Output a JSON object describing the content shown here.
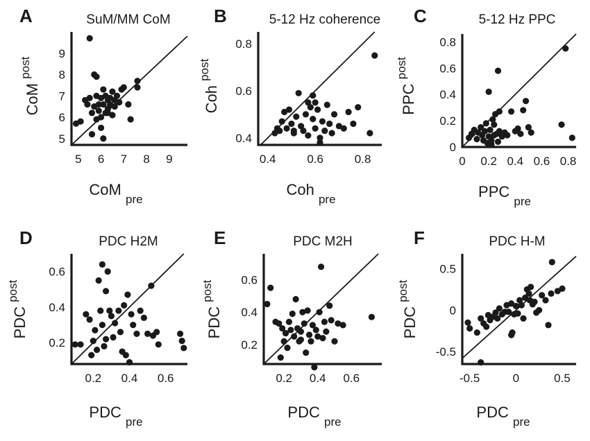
{
  "chart_data": [
    {
      "panel": "A",
      "type": "scatter",
      "title": "SuM/MM CoM",
      "xlabel": "CoM",
      "xlabel_sub": "pre",
      "ylabel": "CoM",
      "ylabel_sub": "post",
      "xlim": [
        4.7,
        9.8
      ],
      "ylim": [
        4.7,
        10.0
      ],
      "xticks": [
        5,
        6,
        7,
        8,
        9
      ],
      "yticks": [
        5,
        6,
        7,
        8,
        9
      ],
      "xtick_labels": [
        "5",
        "6",
        "7",
        "8",
        "9"
      ],
      "ytick_labels": [
        "5",
        "6",
        "7",
        "8",
        "9"
      ],
      "diagonal": true,
      "points": [
        [
          5.5,
          9.7
        ],
        [
          5.7,
          8.0
        ],
        [
          5.8,
          7.9
        ],
        [
          4.9,
          5.7
        ],
        [
          5.1,
          5.8
        ],
        [
          5.3,
          6.8
        ],
        [
          5.4,
          6.6
        ],
        [
          5.5,
          6.9
        ],
        [
          5.6,
          6.2
        ],
        [
          5.7,
          6.5
        ],
        [
          5.8,
          5.9
        ],
        [
          5.8,
          7.0
        ],
        [
          5.9,
          6.3
        ],
        [
          6.0,
          6.9
        ],
        [
          6.0,
          5.5
        ],
        [
          6.1,
          7.3
        ],
        [
          6.1,
          6.6
        ],
        [
          6.2,
          7.0
        ],
        [
          6.2,
          6.2
        ],
        [
          6.3,
          6.8
        ],
        [
          6.3,
          6.4
        ],
        [
          6.4,
          6.9
        ],
        [
          6.4,
          6.6
        ],
        [
          6.5,
          7.2
        ],
        [
          6.5,
          6.1
        ],
        [
          6.6,
          6.8
        ],
        [
          6.6,
          6.5
        ],
        [
          6.7,
          7.0
        ],
        [
          6.8,
          6.7
        ],
        [
          6.9,
          7.3
        ],
        [
          7.0,
          7.4
        ],
        [
          7.2,
          6.6
        ],
        [
          7.3,
          5.9
        ],
        [
          7.6,
          7.4
        ],
        [
          7.6,
          7.7
        ],
        [
          5.6,
          5.2
        ],
        [
          6.1,
          5.0
        ],
        [
          6.0,
          6.0
        ],
        [
          6.3,
          6.2
        ],
        [
          5.9,
          6.6
        ]
      ]
    },
    {
      "panel": "B",
      "type": "scatter",
      "title": "5-12 Hz coherence",
      "xlabel": "Coh",
      "xlabel_sub": "pre",
      "ylabel": "Coh",
      "ylabel_sub": "post",
      "xlim": [
        0.36,
        0.88
      ],
      "ylim": [
        0.37,
        0.85
      ],
      "xticks": [
        0.4,
        0.6,
        0.8
      ],
      "yticks": [
        0.4,
        0.6,
        0.8
      ],
      "xtick_labels": [
        "0.4",
        "0.6",
        "0.8"
      ],
      "ytick_labels": [
        "0.4",
        "0.6",
        "0.8"
      ],
      "diagonal": true,
      "points": [
        [
          0.85,
          0.75
        ],
        [
          0.43,
          0.42
        ],
        [
          0.44,
          0.44
        ],
        [
          0.46,
          0.47
        ],
        [
          0.47,
          0.51
        ],
        [
          0.48,
          0.44
        ],
        [
          0.49,
          0.52
        ],
        [
          0.5,
          0.46
        ],
        [
          0.51,
          0.42
        ],
        [
          0.52,
          0.49
        ],
        [
          0.53,
          0.59
        ],
        [
          0.54,
          0.45
        ],
        [
          0.55,
          0.43
        ],
        [
          0.56,
          0.5
        ],
        [
          0.57,
          0.41
        ],
        [
          0.58,
          0.53
        ],
        [
          0.59,
          0.58
        ],
        [
          0.59,
          0.48
        ],
        [
          0.6,
          0.55
        ],
        [
          0.6,
          0.44
        ],
        [
          0.61,
          0.52
        ],
        [
          0.62,
          0.4
        ],
        [
          0.63,
          0.47
        ],
        [
          0.64,
          0.43
        ],
        [
          0.65,
          0.54
        ],
        [
          0.66,
          0.46
        ],
        [
          0.67,
          0.42
        ],
        [
          0.68,
          0.5
        ],
        [
          0.7,
          0.45
        ],
        [
          0.72,
          0.44
        ],
        [
          0.74,
          0.51
        ],
        [
          0.76,
          0.46
        ],
        [
          0.78,
          0.53
        ],
        [
          0.83,
          0.42
        ],
        [
          0.62,
          0.38
        ],
        [
          0.57,
          0.55
        ],
        [
          0.51,
          0.43
        ],
        [
          0.45,
          0.43
        ]
      ]
    },
    {
      "panel": "C",
      "type": "scatter",
      "title": "5-12 Hz PPC",
      "xlabel": "PPC",
      "xlabel_sub": "pre",
      "ylabel": "PPC",
      "ylabel_sub": "post",
      "xlim": [
        0.0,
        0.86
      ],
      "ylim": [
        0.0,
        0.86
      ],
      "xticks": [
        0,
        0.2,
        0.4,
        0.6,
        0.8
      ],
      "yticks": [
        0,
        0.2,
        0.4,
        0.6,
        0.8
      ],
      "xtick_labels": [
        "0",
        "0.2",
        "0.4",
        "0.6",
        "0.8"
      ],
      "ytick_labels": [
        "0",
        "0.2",
        "0.4",
        "0.6",
        "0.8"
      ],
      "diagonal": true,
      "points": [
        [
          0.78,
          0.75
        ],
        [
          0.27,
          0.58
        ],
        [
          0.2,
          0.42
        ],
        [
          0.05,
          0.07
        ],
        [
          0.07,
          0.1
        ],
        [
          0.09,
          0.13
        ],
        [
          0.11,
          0.06
        ],
        [
          0.12,
          0.11
        ],
        [
          0.14,
          0.15
        ],
        [
          0.15,
          0.09
        ],
        [
          0.16,
          0.05
        ],
        [
          0.17,
          0.12
        ],
        [
          0.18,
          0.18
        ],
        [
          0.19,
          0.03
        ],
        [
          0.2,
          0.08
        ],
        [
          0.21,
          0.13
        ],
        [
          0.22,
          0.05
        ],
        [
          0.23,
          0.21
        ],
        [
          0.24,
          0.09
        ],
        [
          0.25,
          0.25
        ],
        [
          0.26,
          0.1
        ],
        [
          0.27,
          0.04
        ],
        [
          0.28,
          0.12
        ],
        [
          0.3,
          0.08
        ],
        [
          0.32,
          0.11
        ],
        [
          0.34,
          0.09
        ],
        [
          0.37,
          0.27
        ],
        [
          0.4,
          0.12
        ],
        [
          0.42,
          0.14
        ],
        [
          0.44,
          0.1
        ],
        [
          0.46,
          0.28
        ],
        [
          0.48,
          0.35
        ],
        [
          0.5,
          0.15
        ],
        [
          0.52,
          0.11
        ],
        [
          0.75,
          0.17
        ],
        [
          0.83,
          0.07
        ],
        [
          0.24,
          0.17
        ],
        [
          0.22,
          0.02
        ],
        [
          0.28,
          0.27
        ]
      ]
    },
    {
      "panel": "D",
      "type": "scatter",
      "title": "PDC H2M",
      "xlabel": "PDC",
      "xlabel_sub": "pre",
      "ylabel": "PDC",
      "ylabel_sub": "post",
      "xlim": [
        0.08,
        0.72
      ],
      "ylim": [
        0.08,
        0.7
      ],
      "xticks": [
        0.2,
        0.4,
        0.6
      ],
      "yticks": [
        0.2,
        0.4,
        0.6
      ],
      "xtick_labels": [
        "0.2",
        "0.4",
        "0.6"
      ],
      "ytick_labels": [
        "0.2",
        "0.4",
        "0.6"
      ],
      "diagonal": true,
      "points": [
        [
          0.1,
          0.19
        ],
        [
          0.13,
          0.19
        ],
        [
          0.16,
          0.36
        ],
        [
          0.18,
          0.33
        ],
        [
          0.19,
          0.13
        ],
        [
          0.2,
          0.21
        ],
        [
          0.21,
          0.27
        ],
        [
          0.22,
          0.16
        ],
        [
          0.23,
          0.55
        ],
        [
          0.24,
          0.38
        ],
        [
          0.25,
          0.64
        ],
        [
          0.25,
          0.3
        ],
        [
          0.26,
          0.18
        ],
        [
          0.27,
          0.22
        ],
        [
          0.27,
          0.49
        ],
        [
          0.28,
          0.6
        ],
        [
          0.29,
          0.38
        ],
        [
          0.3,
          0.35
        ],
        [
          0.31,
          0.23
        ],
        [
          0.32,
          0.31
        ],
        [
          0.34,
          0.38
        ],
        [
          0.35,
          0.26
        ],
        [
          0.36,
          0.15
        ],
        [
          0.37,
          0.41
        ],
        [
          0.38,
          0.13
        ],
        [
          0.39,
          0.47
        ],
        [
          0.4,
          0.09
        ],
        [
          0.41,
          0.36
        ],
        [
          0.42,
          0.3
        ],
        [
          0.44,
          0.25
        ],
        [
          0.46,
          0.38
        ],
        [
          0.48,
          0.34
        ],
        [
          0.5,
          0.25
        ],
        [
          0.52,
          0.52
        ],
        [
          0.53,
          0.24
        ],
        [
          0.55,
          0.26
        ],
        [
          0.56,
          0.19
        ],
        [
          0.68,
          0.25
        ],
        [
          0.69,
          0.21
        ],
        [
          0.7,
          0.17
        ]
      ]
    },
    {
      "panel": "E",
      "type": "scatter",
      "title": "PDC M2H",
      "xlabel": "PDC",
      "xlabel_sub": "pre",
      "ylabel": "PDC",
      "ylabel_sub": "post",
      "xlim": [
        0.08,
        0.78
      ],
      "ylim": [
        0.08,
        0.76
      ],
      "xticks": [
        0.2,
        0.4,
        0.6
      ],
      "yticks": [
        0.2,
        0.4,
        0.6
      ],
      "xtick_labels": [
        "0.2",
        "0.4",
        "0.6"
      ],
      "ytick_labels": [
        "0.2",
        "0.4",
        "0.6"
      ],
      "diagonal": true,
      "points": [
        [
          0.1,
          0.45
        ],
        [
          0.12,
          0.55
        ],
        [
          0.15,
          0.34
        ],
        [
          0.17,
          0.33
        ],
        [
          0.18,
          0.12
        ],
        [
          0.19,
          0.3
        ],
        [
          0.2,
          0.22
        ],
        [
          0.21,
          0.27
        ],
        [
          0.22,
          0.18
        ],
        [
          0.23,
          0.34
        ],
        [
          0.24,
          0.29
        ],
        [
          0.25,
          0.39
        ],
        [
          0.26,
          0.25
        ],
        [
          0.27,
          0.48
        ],
        [
          0.28,
          0.3
        ],
        [
          0.29,
          0.22
        ],
        [
          0.3,
          0.28
        ],
        [
          0.31,
          0.4
        ],
        [
          0.32,
          0.33
        ],
        [
          0.33,
          0.15
        ],
        [
          0.34,
          0.41
        ],
        [
          0.35,
          0.26
        ],
        [
          0.36,
          0.22
        ],
        [
          0.37,
          0.32
        ],
        [
          0.38,
          0.06
        ],
        [
          0.39,
          0.29
        ],
        [
          0.4,
          0.25
        ],
        [
          0.41,
          0.4
        ],
        [
          0.42,
          0.68
        ],
        [
          0.43,
          0.24
        ],
        [
          0.44,
          0.34
        ],
        [
          0.45,
          0.28
        ],
        [
          0.47,
          0.44
        ],
        [
          0.48,
          0.35
        ],
        [
          0.5,
          0.22
        ],
        [
          0.52,
          0.33
        ],
        [
          0.55,
          0.32
        ],
        [
          0.72,
          0.37
        ],
        [
          0.3,
          0.23
        ]
      ]
    },
    {
      "panel": "F",
      "type": "scatter",
      "title": "PDC H-M",
      "xlabel": "PDC",
      "xlabel_sub": "pre",
      "ylabel": "PDC",
      "ylabel_sub": "post",
      "xlim": [
        -0.58,
        0.65
      ],
      "ylim": [
        -0.65,
        0.68
      ],
      "xticks": [
        -0.5,
        0,
        0.5
      ],
      "yticks": [
        -0.5,
        0,
        0.5
      ],
      "xtick_labels": [
        "-0.5",
        "0",
        "0.5"
      ],
      "ytick_labels": [
        "-0.5",
        "0",
        "0.5"
      ],
      "diagonal": true,
      "points": [
        [
          0.39,
          0.58
        ],
        [
          -0.38,
          -0.63
        ],
        [
          -0.52,
          -0.15
        ],
        [
          -0.5,
          -0.22
        ],
        [
          -0.42,
          -0.27
        ],
        [
          -0.38,
          -0.1
        ],
        [
          -0.35,
          -0.16
        ],
        [
          -0.32,
          -0.2
        ],
        [
          -0.3,
          -0.06
        ],
        [
          -0.28,
          -0.12
        ],
        [
          -0.25,
          -0.08
        ],
        [
          -0.22,
          -0.03
        ],
        [
          -0.2,
          -0.1
        ],
        [
          -0.18,
          0.02
        ],
        [
          -0.15,
          -0.05
        ],
        [
          -0.12,
          -0.02
        ],
        [
          -0.1,
          0.06
        ],
        [
          -0.08,
          -0.02
        ],
        [
          -0.05,
          0.08
        ],
        [
          -0.04,
          -0.27
        ],
        [
          -0.02,
          -0.05
        ],
        [
          0.0,
          0.05
        ],
        [
          0.02,
          -0.04
        ],
        [
          0.04,
          0.12
        ],
        [
          0.06,
          0.06
        ],
        [
          0.08,
          -0.1
        ],
        [
          0.1,
          0.15
        ],
        [
          0.12,
          0.25
        ],
        [
          0.14,
          0.2
        ],
        [
          0.16,
          0.28
        ],
        [
          0.18,
          0.07
        ],
        [
          0.2,
          0.1
        ],
        [
          0.22,
          -0.03
        ],
        [
          0.25,
          0.0
        ],
        [
          0.28,
          0.18
        ],
        [
          0.32,
          0.12
        ],
        [
          0.35,
          -0.18
        ],
        [
          0.38,
          0.2
        ],
        [
          0.45,
          0.23
        ],
        [
          0.5,
          0.26
        ],
        [
          -0.05,
          -0.3
        ],
        [
          0.15,
          0.12
        ]
      ]
    }
  ],
  "labels": {
    "a": {
      "letter": "A",
      "title": "SuM/MM CoM",
      "xlabel": "CoM",
      "xlabel_sub": "pre",
      "ylabel": "CoM",
      "ylabel_sub": "post"
    },
    "b": {
      "letter": "B",
      "title": "5-12 Hz coherence",
      "xlabel": "Coh",
      "xlabel_sub": "pre",
      "ylabel": "Coh",
      "ylabel_sub": "post"
    },
    "c": {
      "letter": "C",
      "title": "5-12 Hz PPC",
      "xlabel": "PPC",
      "xlabel_sub": "pre",
      "ylabel": "PPC",
      "ylabel_sub": "post"
    },
    "d": {
      "letter": "D",
      "title": "PDC H2M",
      "xlabel": "PDC",
      "xlabel_sub": "pre",
      "ylabel": "PDC",
      "ylabel_sub": "post"
    },
    "e": {
      "letter": "E",
      "title": "PDC M2H",
      "xlabel": "PDC",
      "xlabel_sub": "pre",
      "ylabel": "PDC",
      "ylabel_sub": "post"
    },
    "f": {
      "letter": "F",
      "title": "PDC H-M",
      "xlabel": "PDC",
      "xlabel_sub": "pre",
      "ylabel": "PDC",
      "ylabel_sub": "post"
    }
  },
  "colors": {
    "ink": "#1a1a1a",
    "background": "#ffffff"
  }
}
